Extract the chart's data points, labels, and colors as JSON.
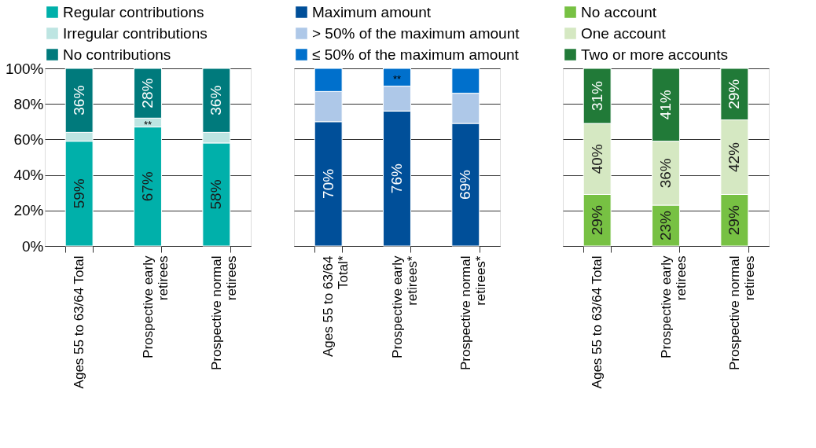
{
  "chart_data": [
    {
      "type": "bar",
      "stacked": true,
      "categories": [
        "Ages 55 to 63/64 Total",
        "Prospective early retirees",
        "Prospective normal retirees"
      ],
      "ylim": [
        0,
        100
      ],
      "yticks": [
        {
          "value": 0,
          "label": "0%"
        },
        {
          "value": 20,
          "label": "20%"
        },
        {
          "value": 40,
          "label": "40%"
        },
        {
          "value": 60,
          "label": "60%"
        },
        {
          "value": 80,
          "label": "80%"
        },
        {
          "value": 100,
          "label": "100%"
        }
      ],
      "grid": "y",
      "legend": "top",
      "series": [
        {
          "name": "Regular contributions",
          "color": "#00b0aa",
          "values": [
            59,
            67,
            58
          ],
          "value_labels": [
            "59%",
            "67%",
            "58%"
          ]
        },
        {
          "name": "Irregular contributions",
          "color": "#bde5e2",
          "values": [
            5,
            5,
            6
          ],
          "value_labels": [
            null,
            "**",
            null
          ]
        },
        {
          "name": "No contributions",
          "color": "#007a7c",
          "values": [
            36,
            28,
            36
          ],
          "value_labels": [
            "36%",
            "28%",
            "36%"
          ]
        }
      ]
    },
    {
      "type": "bar",
      "stacked": true,
      "categories": [
        "Ages 55 to 63/64 Total*",
        "Prospective early retirees*",
        "Prospective normal retirees*"
      ],
      "ylim": [
        0,
        100
      ],
      "yticks": [
        {
          "value": 0,
          "label": null
        },
        {
          "value": 20,
          "label": null
        },
        {
          "value": 40,
          "label": null
        },
        {
          "value": 60,
          "label": null
        },
        {
          "value": 80,
          "label": null
        },
        {
          "value": 100,
          "label": null
        }
      ],
      "grid": "y",
      "legend": "top",
      "tick_labels": "x",
      "series": [
        {
          "name": "Maximum amount",
          "color": "#004f99",
          "values": [
            70,
            76,
            69
          ],
          "value_labels": [
            "70%",
            "76%",
            "69%"
          ]
        },
        {
          "name": "> 50% of the maximum amount",
          "color": "#aec8e8",
          "values": [
            17,
            14,
            17
          ],
          "value_labels": [
            null,
            null,
            null
          ]
        },
        {
          "name": "≤ 50% of the maximum amount",
          "color": "#0070cc",
          "values": [
            13,
            10,
            14
          ],
          "value_labels": [
            null,
            "**",
            null
          ]
        }
      ]
    },
    {
      "type": "bar",
      "stacked": true,
      "categories": [
        "Ages 55 to 63/64 Total",
        "Prospective early retirees",
        "Prospective normal retirees"
      ],
      "ylim": [
        0,
        100
      ],
      "yticks": [
        {
          "value": 0,
          "label": null
        },
        {
          "value": 20,
          "label": null
        },
        {
          "value": 40,
          "label": null
        },
        {
          "value": 60,
          "label": null
        },
        {
          "value": 80,
          "label": null
        },
        {
          "value": 100,
          "label": null
        }
      ],
      "grid": "y",
      "legend": "top",
      "tick_labels": "x",
      "series": [
        {
          "name": "No account",
          "color": "#77c143",
          "values": [
            29,
            23,
            29
          ],
          "value_labels": [
            "29%",
            "23%",
            "29%"
          ]
        },
        {
          "name": "One account",
          "color": "#d5e8c2",
          "values": [
            40,
            36,
            42
          ],
          "value_labels": [
            "40%",
            "36%",
            "42%"
          ]
        },
        {
          "name": "Two or more accounts",
          "color": "#217a38",
          "values": [
            31,
            41,
            29
          ],
          "value_labels": [
            "31%",
            "41%",
            "29%"
          ]
        }
      ]
    }
  ]
}
